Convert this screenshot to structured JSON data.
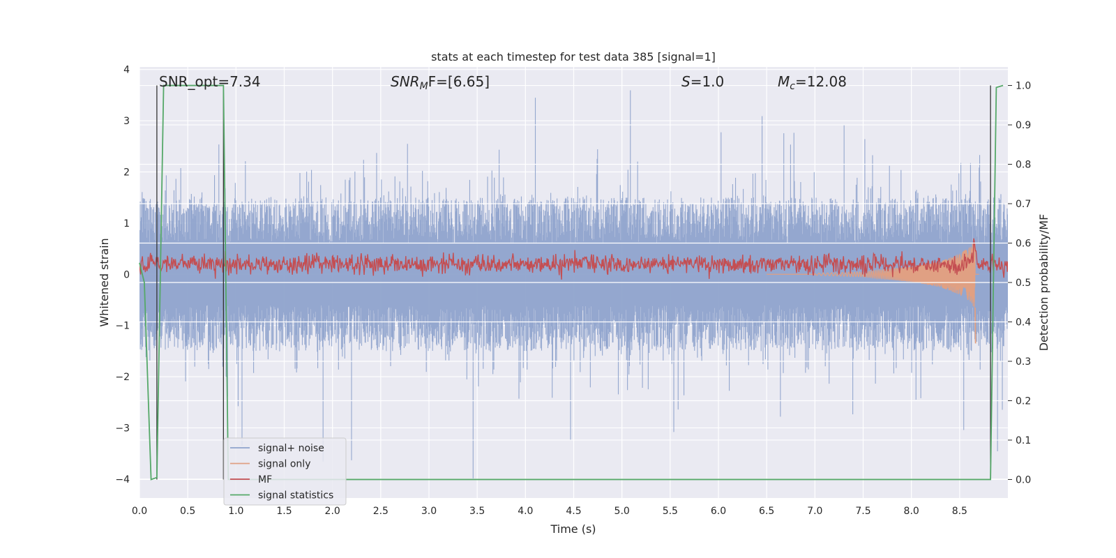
{
  "chart_data": {
    "type": "line",
    "title": "stats at each timestep for test data 385 [signal=1]",
    "xlabel": "Time (s)",
    "ylabel_left": "Whitened strain",
    "ylabel_right": "Detection probability/MF",
    "xlim": [
      0.0,
      9.0
    ],
    "ylim_left": [
      -4.37,
      4.05
    ],
    "ylim_right": [
      -0.047,
      1.047
    ],
    "x_ticks": [
      "0.0",
      "0.5",
      "1.0",
      "1.5",
      "2.0",
      "2.5",
      "3.0",
      "3.5",
      "4.0",
      "4.5",
      "5.0",
      "5.5",
      "6.0",
      "6.5",
      "7.0",
      "7.5",
      "8.0",
      "8.5"
    ],
    "y_ticks_left": [
      "−4",
      "−3",
      "−2",
      "−1",
      "0",
      "1",
      "2",
      "3",
      "4"
    ],
    "y_ticks_right": [
      "0.0",
      "0.1",
      "0.2",
      "0.3",
      "0.4",
      "0.5",
      "0.6",
      "0.7",
      "0.8",
      "0.9",
      "1.0"
    ],
    "grid": true,
    "legend_position": "lower-left",
    "annotations": {
      "snr_opt": "SNR_opt=7.34",
      "snr_mf_sym": "SNR",
      "snr_mf_sub": "M",
      "snr_mf_rest": "F=[6.65]",
      "s_sym": "S",
      "s_rest": "=1.0",
      "mc_sym": "M",
      "mc_sub": "c",
      "mc_rest": "=12.08"
    },
    "series": [
      {
        "name": "signal+ noise",
        "color": "#8fa3cc",
        "approx_std": 0.75,
        "axis": "left"
      },
      {
        "name": "signal only",
        "color": "#e0a083",
        "axis": "left",
        "envelope": {
          "x": [
            7.0,
            7.5,
            8.0,
            8.3,
            8.5,
            8.62,
            8.66
          ],
          "amp": [
            0.02,
            0.05,
            0.15,
            0.25,
            0.4,
            0.55,
            0.7
          ]
        }
      },
      {
        "name": "MF",
        "color": "#c44e52",
        "axis": "left",
        "approx_mean": 0.2
      },
      {
        "name": "signal statistics",
        "color": "#55a868",
        "axis": "right",
        "x": [
          0.0,
          0.05,
          0.12,
          0.18,
          0.25,
          0.87,
          0.92,
          1.0,
          8.0,
          8.82,
          8.88,
          8.95
        ],
        "y": [
          0.55,
          0.5,
          0.0,
          0.005,
          1.0,
          1.0,
          0.0,
          0.0,
          0.0,
          0.0,
          0.995,
          1.0
        ]
      }
    ],
    "vlines": [
      0.18,
      0.87,
      8.82
    ]
  }
}
